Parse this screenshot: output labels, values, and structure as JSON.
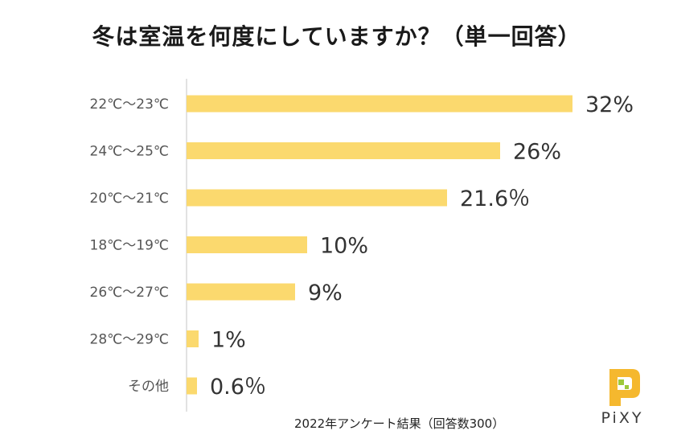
{
  "chart_data": {
    "type": "bar",
    "orientation": "horizontal",
    "title": "冬は室温を何度にしていますか？（単一回答）",
    "categories": [
      "22℃～23℃",
      "24℃～25℃",
      "20℃～21℃",
      "18℃～19℃",
      "26℃～27℃",
      "28℃～29℃",
      "その他"
    ],
    "values": [
      32,
      26,
      21.6,
      10,
      9,
      1,
      0.6
    ],
    "value_labels": [
      "32%",
      "26%",
      "21.6％",
      "10%",
      "9%",
      "1%",
      "0.6％"
    ],
    "xlim": [
      0,
      35
    ],
    "bar_color": "#fbd96e",
    "axis_color": "#d9d9d9",
    "grid": false,
    "legend": "none"
  },
  "footnote": "2022年アンケート結果（回答数300）",
  "logo": {
    "text": "PiXY",
    "icon": "pixy-logo-icon",
    "colors": {
      "yellow": "#f5b82e",
      "green": "#9ec93a"
    }
  }
}
